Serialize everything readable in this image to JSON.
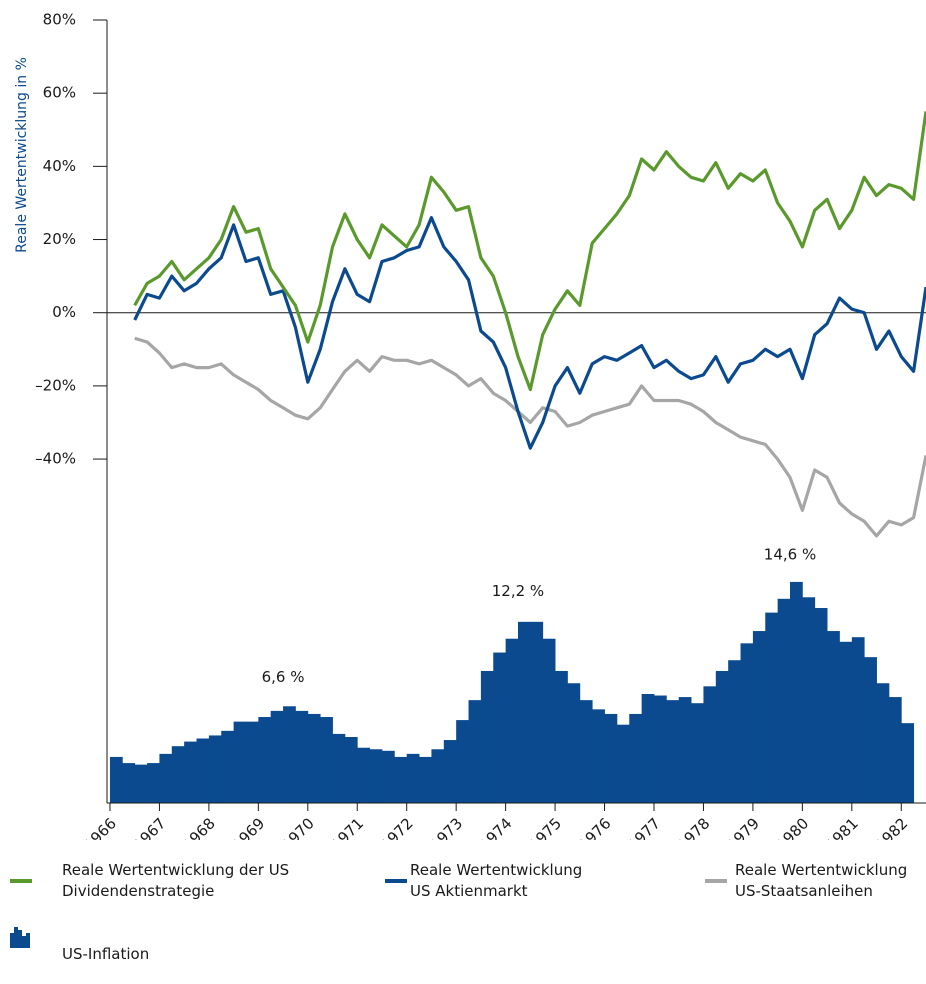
{
  "chart_data": {
    "type": "line",
    "ylabel": "Reale Wertentwicklung in %",
    "x": [
      1966.5,
      1966.75,
      1967,
      1967.25,
      1967.5,
      1967.75,
      1968,
      1968.25,
      1968.5,
      1968.75,
      1969,
      1969.25,
      1969.5,
      1969.75,
      1970,
      1970.25,
      1970.5,
      1970.75,
      1971,
      1971.25,
      1971.5,
      1971.75,
      1972,
      1972.25,
      1972.5,
      1972.75,
      1973,
      1973.25,
      1973.5,
      1973.75,
      1974,
      1974.25,
      1974.5,
      1974.75,
      1975,
      1975.25,
      1975.5,
      1975.75,
      1976,
      1976.25,
      1976.5,
      1976.75,
      1977,
      1977.25,
      1977.5,
      1977.75,
      1978,
      1978.25,
      1978.5,
      1978.75,
      1979,
      1979.25,
      1979.5,
      1979.75,
      1980,
      1980.25,
      1980.5,
      1980.75,
      1981,
      1981.25,
      1981.5,
      1981.75,
      1982,
      1982.25,
      1982.5
    ],
    "xlim": [
      1965.94,
      1982.5
    ],
    "xticks": [
      1966,
      1967,
      1968,
      1969,
      1970,
      1971,
      1972,
      1973,
      1974,
      1975,
      1976,
      1977,
      1978,
      1979,
      1980,
      1981,
      1982
    ],
    "ylim": [
      -134,
      80
    ],
    "yticks": [
      {
        "value": -40,
        "label": "–40%"
      },
      {
        "value": -20,
        "label": "–20%"
      },
      {
        "value": 0,
        "label": "0%"
      },
      {
        "value": 20,
        "label": "20%"
      },
      {
        "value": 40,
        "label": "40%"
      },
      {
        "value": 60,
        "label": "60%"
      },
      {
        "value": 80,
        "label": "80%"
      }
    ],
    "series": [
      {
        "name": "Reale Wertentwicklung der US\nDividendenstrategie",
        "color": "#5a9a2c",
        "values": [
          2,
          8,
          10,
          14,
          9,
          12,
          15,
          20,
          29,
          22,
          23,
          12,
          7,
          2,
          -8,
          2,
          18,
          27,
          20,
          15,
          24,
          21,
          18,
          24,
          37,
          33,
          28,
          29,
          15,
          10,
          0,
          -12,
          -21,
          -6,
          1,
          6,
          2,
          19,
          23,
          27,
          32,
          42,
          39,
          44,
          40,
          37,
          36,
          41,
          34,
          38,
          36,
          39,
          30,
          25,
          18,
          28,
          31,
          23,
          28,
          37,
          32,
          35,
          34,
          31,
          55
        ]
      },
      {
        "name": "Reale Wertentwicklung\nUS Aktienmarkt",
        "color": "#0b4a8f",
        "values": [
          -2,
          5,
          4,
          10,
          6,
          8,
          12,
          15,
          24,
          14,
          15,
          5,
          6,
          -4,
          -19,
          -10,
          3,
          12,
          5,
          3,
          14,
          15,
          17,
          18,
          26,
          18,
          14,
          9,
          -5,
          -8,
          -15,
          -27,
          -37,
          -30,
          -20,
          -15,
          -22,
          -14,
          -12,
          -13,
          -11,
          -9,
          -15,
          -13,
          -16,
          -18,
          -17,
          -12,
          -19,
          -14,
          -13,
          -10,
          -12,
          -10,
          -18,
          -6,
          -3,
          4,
          1,
          0,
          -10,
          -5,
          -12,
          -16,
          7
        ]
      },
      {
        "name": "Reale Wertentwicklung\nUS-Staatsanleihen",
        "color": "#a6a6a6",
        "values": [
          -7,
          -8,
          -11,
          -15,
          -14,
          -15,
          -15,
          -14,
          -17,
          -19,
          -21,
          -24,
          -26,
          -28,
          -29,
          -26,
          -21,
          -16,
          -13,
          -16,
          -12,
          -13,
          -13,
          -14,
          -13,
          -15,
          -17,
          -20,
          -18,
          -22,
          -24,
          -27,
          -30,
          -26,
          -27,
          -31,
          -30,
          -28,
          -27,
          -26,
          -25,
          -20,
          -24,
          -24,
          -24,
          -25,
          -27,
          -30,
          -32,
          -34,
          -35,
          -36,
          -40,
          -45,
          -54,
          -43,
          -45,
          -52,
          -55,
          -57,
          -61,
          -57,
          -58,
          -56,
          -39
        ]
      }
    ],
    "bar_series": {
      "name": "US-Inflation",
      "color": "#0b4a8f",
      "type": "bar",
      "axis": "y2",
      "x": [
        1966,
        1966.25,
        1966.5,
        1966.75,
        1967,
        1967.25,
        1967.5,
        1967.75,
        1968,
        1968.25,
        1968.5,
        1968.75,
        1969,
        1969.25,
        1969.5,
        1969.75,
        1970,
        1970.25,
        1970.5,
        1970.75,
        1971,
        1971.25,
        1971.5,
        1971.75,
        1972,
        1972.25,
        1972.5,
        1972.75,
        1973,
        1973.25,
        1973.5,
        1973.75,
        1974,
        1974.25,
        1974.5,
        1974.75,
        1975,
        1975.25,
        1975.5,
        1975.75,
        1976,
        1976.25,
        1976.5,
        1976.75,
        1977,
        1977.25,
        1977.5,
        1977.75,
        1978,
        1978.25,
        1978.5,
        1978.75,
        1979,
        1979.25,
        1979.5,
        1979.75,
        1980,
        1980.25,
        1980.5,
        1980.75,
        1981,
        1981.25,
        1981.5,
        1981.75,
        1982
      ],
      "values": [
        3.0,
        2.6,
        2.5,
        2.6,
        3.2,
        3.7,
        4.0,
        4.2,
        4.4,
        4.7,
        5.3,
        5.3,
        5.6,
        6.0,
        6.3,
        6.0,
        5.8,
        5.6,
        4.5,
        4.3,
        3.6,
        3.5,
        3.4,
        3.0,
        3.2,
        3.0,
        3.5,
        4.1,
        5.4,
        6.7,
        8.6,
        9.8,
        10.7,
        11.8,
        11.8,
        10.7,
        8.6,
        7.8,
        6.7,
        6.1,
        5.8,
        5.1,
        5.8,
        7.1,
        7.0,
        6.7,
        6.9,
        6.5,
        7.6,
        8.6,
        9.3,
        10.4,
        11.2,
        12.4,
        13.3,
        14.4,
        13.4,
        12.7,
        11.2,
        10.5,
        10.8,
        9.5,
        7.8,
        6.9,
        5.2
      ]
    },
    "y2lim": [
      0,
      51
    ],
    "annotations": [
      {
        "text": "6,6 %",
        "x": 1969.5,
        "y": 6.6
      },
      {
        "text": "12,2 %",
        "x": 1974.25,
        "y": 12.2
      },
      {
        "text": "14,6 %",
        "x": 1979.75,
        "y": 14.6
      }
    ]
  }
}
